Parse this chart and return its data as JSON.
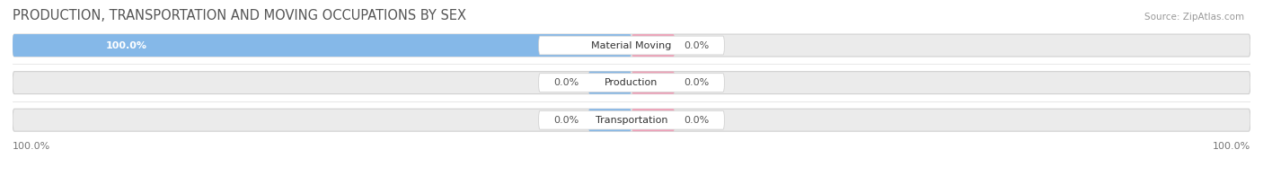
{
  "title": "PRODUCTION, TRANSPORTATION AND MOVING OCCUPATIONS BY SEX",
  "source": "Source: ZipAtlas.com",
  "categories": [
    "Material Moving",
    "Production",
    "Transportation"
  ],
  "male_values": [
    100.0,
    0.0,
    0.0
  ],
  "female_values": [
    0.0,
    0.0,
    0.0
  ],
  "male_color": "#85B8E8",
  "female_color": "#F0A0B8",
  "bar_bg_color": "#EBEBEB",
  "bar_border_color": "#D0D0D0",
  "label_bg_color": "#FFFFFF",
  "title_fontsize": 10.5,
  "label_fontsize": 8,
  "value_fontsize": 8,
  "source_fontsize": 7.5,
  "legend_fontsize": 8.5,
  "x_axis_left_label": "100.0%",
  "x_axis_right_label": "100.0%"
}
